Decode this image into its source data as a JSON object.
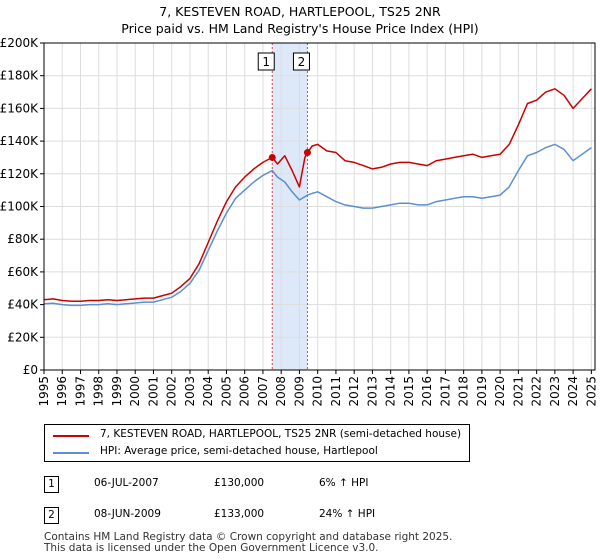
{
  "chart_data": {
    "type": "line",
    "title": "7, KESTEVEN ROAD, HARTLEPOOL, TS25 2NR",
    "subtitle": "Price paid vs. HM Land Registry's House Price Index (HPI)",
    "xlabel": "",
    "ylabel": "",
    "xlim": [
      1995,
      2025.2
    ],
    "ylim": [
      0,
      200000
    ],
    "y_ticks": [
      0,
      20000,
      40000,
      60000,
      80000,
      100000,
      120000,
      140000,
      160000,
      180000,
      200000
    ],
    "y_tick_labels": [
      "£0",
      "£20K",
      "£40K",
      "£60K",
      "£80K",
      "£100K",
      "£120K",
      "£140K",
      "£160K",
      "£180K",
      "£200K"
    ],
    "x_ticks": [
      1995,
      1996,
      1997,
      1998,
      1999,
      2000,
      2001,
      2002,
      2003,
      2004,
      2005,
      2006,
      2007,
      2008,
      2009,
      2010,
      2011,
      2012,
      2013,
      2014,
      2015,
      2016,
      2017,
      2018,
      2019,
      2020,
      2021,
      2022,
      2023,
      2024,
      2025
    ],
    "x_tick_labels": [
      "1995",
      "1996",
      "1997",
      "1998",
      "1999",
      "2000",
      "2001",
      "2002",
      "2003",
      "2004",
      "2005",
      "2006",
      "2007",
      "2008",
      "2009",
      "2010",
      "2011",
      "2012",
      "2013",
      "2014",
      "2015",
      "2016",
      "2017",
      "2018",
      "2019",
      "2020",
      "2021",
      "2022",
      "2023",
      "2024",
      "2025"
    ],
    "grid": true,
    "shaded_range": [
      2007.51,
      2009.44
    ],
    "series": [
      {
        "name": "7, KESTEVEN ROAD, HARTLEPOOL, TS25 2NR (semi-detached house)",
        "color": "#cc0000",
        "x": [
          1995.0,
          1995.5,
          1996.0,
          1996.5,
          1997.0,
          1997.5,
          1998.0,
          1998.5,
          1999.0,
          1999.5,
          2000.0,
          2000.5,
          2001.0,
          2001.5,
          2002.0,
          2002.5,
          2003.0,
          2003.5,
          2004.0,
          2004.5,
          2005.0,
          2005.5,
          2006.0,
          2006.5,
          2007.0,
          2007.51,
          2007.8,
          2008.2,
          2008.6,
          2009.0,
          2009.3,
          2009.44,
          2009.7,
          2010.0,
          2010.5,
          2011.0,
          2011.5,
          2012.0,
          2012.5,
          2013.0,
          2013.5,
          2014.0,
          2014.5,
          2015.0,
          2015.5,
          2016.0,
          2016.5,
          2017.0,
          2017.5,
          2018.0,
          2018.5,
          2019.0,
          2019.5,
          2020.0,
          2020.5,
          2021.0,
          2021.5,
          2022.0,
          2022.5,
          2023.0,
          2023.5,
          2024.0,
          2024.5,
          2025.0
        ],
        "values": [
          43000,
          43500,
          42500,
          42000,
          42000,
          42500,
          42500,
          43000,
          42500,
          43000,
          43500,
          44000,
          44000,
          45500,
          47000,
          51000,
          56000,
          65000,
          78000,
          91000,
          103000,
          112000,
          118000,
          123000,
          127000,
          130000,
          126000,
          131000,
          122000,
          112000,
          130000,
          133000,
          137000,
          138000,
          134000,
          133000,
          128000,
          127000,
          125000,
          123000,
          124000,
          126000,
          127000,
          127000,
          126000,
          125000,
          128000,
          129000,
          130000,
          131000,
          132000,
          130000,
          131000,
          132000,
          138000,
          150000,
          163000,
          165000,
          170000,
          172000,
          168000,
          160000,
          166000,
          172000
        ]
      },
      {
        "name": "HPI: Average price, semi-detached house, Hartlepool",
        "color": "#5b8fd0",
        "x": [
          1995.0,
          1995.5,
          1996.0,
          1996.5,
          1997.0,
          1997.5,
          1998.0,
          1998.5,
          1999.0,
          1999.5,
          2000.0,
          2000.5,
          2001.0,
          2001.5,
          2002.0,
          2002.5,
          2003.0,
          2003.5,
          2004.0,
          2004.5,
          2005.0,
          2005.5,
          2006.0,
          2006.5,
          2007.0,
          2007.51,
          2007.8,
          2008.2,
          2008.6,
          2009.0,
          2009.3,
          2009.44,
          2009.7,
          2010.0,
          2010.5,
          2011.0,
          2011.5,
          2012.0,
          2012.5,
          2013.0,
          2013.5,
          2014.0,
          2014.5,
          2015.0,
          2015.5,
          2016.0,
          2016.5,
          2017.0,
          2017.5,
          2018.0,
          2018.5,
          2019.0,
          2019.5,
          2020.0,
          2020.5,
          2021.0,
          2021.5,
          2022.0,
          2022.5,
          2023.0,
          2023.5,
          2024.0,
          2024.5,
          2025.0
        ],
        "values": [
          40500,
          40800,
          40000,
          39500,
          39500,
          40000,
          40000,
          40500,
          40000,
          40500,
          41000,
          41500,
          41500,
          43000,
          44500,
          48000,
          53000,
          61000,
          73000,
          85000,
          96000,
          105000,
          110000,
          115000,
          119000,
          122000,
          118000,
          115000,
          109000,
          104000,
          106000,
          107000,
          108000,
          109000,
          106000,
          103000,
          101000,
          100000,
          99000,
          99000,
          100000,
          101000,
          102000,
          102000,
          101000,
          101000,
          103000,
          104000,
          105000,
          106000,
          106000,
          105000,
          106000,
          107000,
          112000,
          122000,
          131000,
          133000,
          136000,
          138000,
          135000,
          128000,
          132000,
          136000
        ]
      }
    ],
    "sales": [
      {
        "label": "1",
        "date": "06-JUL-2007",
        "x": 2007.51,
        "price_value": 130000,
        "price": "£130,000",
        "hpi": "6% ↑ HPI"
      },
      {
        "label": "2",
        "date": "08-JUN-2009",
        "x": 2009.44,
        "price_value": 133000,
        "price": "£133,000",
        "hpi": "24% ↑ HPI"
      }
    ]
  },
  "footer": {
    "line1": "Contains HM Land Registry data © Crown copyright and database right 2025.",
    "line2": "This data is licensed under the Open Government Licence v3.0."
  },
  "colors": {
    "grid": "#dddddd",
    "shade": "#dde8f8",
    "marker_line": "#dd4444"
  }
}
